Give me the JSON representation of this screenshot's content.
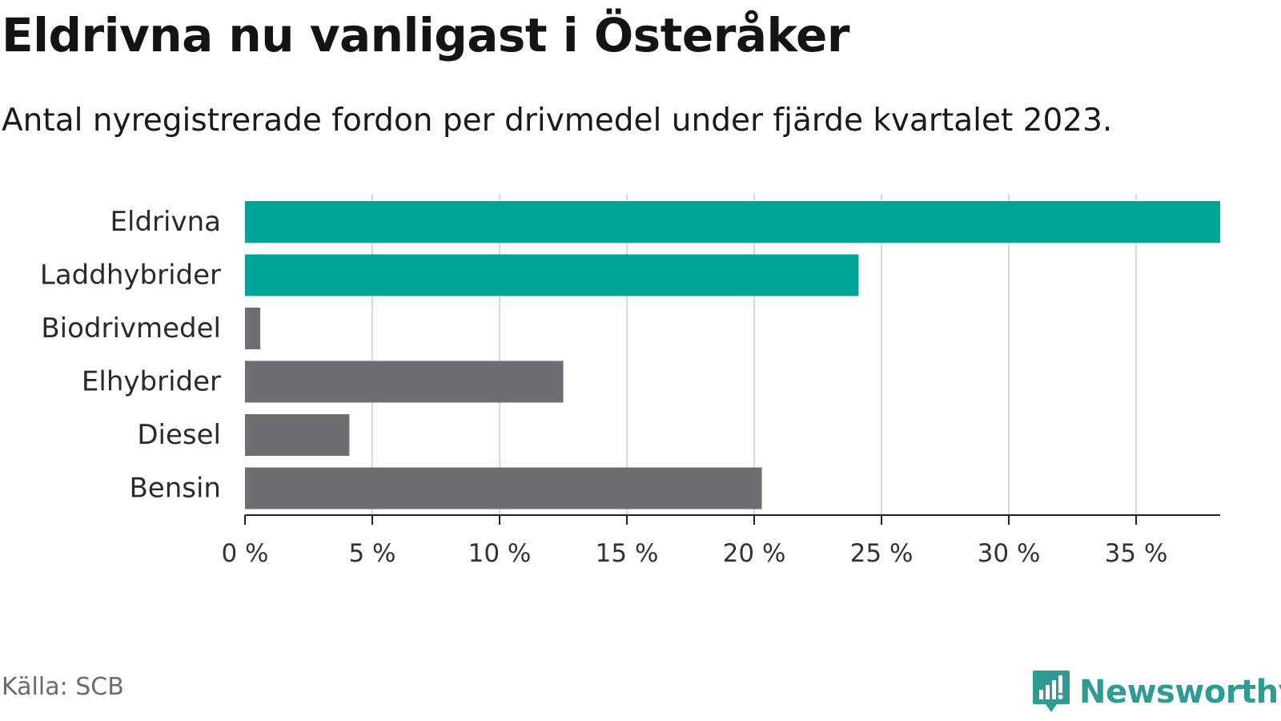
{
  "header": {
    "title": "Eldrivna nu vanligast i Österåker",
    "subtitle": "Antal nyregistrerade fordon per drivmedel under fjärde kvartalet 2023."
  },
  "footer": {
    "source": "Källa: SCB",
    "brand": "Newsworthy",
    "brand_icon": "newsworthy-logo-icon"
  },
  "colors": {
    "highlight": "#00a499",
    "default": "#6e6d72",
    "grid": "#d9d9d9",
    "axis": "#222222",
    "brand": "#2e9c94"
  },
  "chart_data": {
    "type": "bar",
    "orientation": "horizontal",
    "title": "Eldrivna nu vanligast i Österåker",
    "subtitle": "Antal nyregistrerade fordon per drivmedel under fjärde kvartalet 2023.",
    "xlabel": "",
    "ylabel": "",
    "unit": "%",
    "categories": [
      "Eldrivna",
      "Laddhybrider",
      "Biodrivmedel",
      "Elhybrider",
      "Diesel",
      "Bensin"
    ],
    "values": [
      38.3,
      24.1,
      0.6,
      12.5,
      4.1,
      20.3
    ],
    "highlighted": [
      true,
      true,
      false,
      false,
      false,
      false
    ],
    "xlim": [
      0,
      38.3
    ],
    "ticks": [
      0,
      5,
      10,
      15,
      20,
      25,
      30,
      35
    ],
    "tick_labels": [
      "0 %",
      "5 %",
      "10 %",
      "15 %",
      "20 %",
      "25 %",
      "30 %",
      "35 %"
    ],
    "grid": true,
    "legend": "none"
  }
}
